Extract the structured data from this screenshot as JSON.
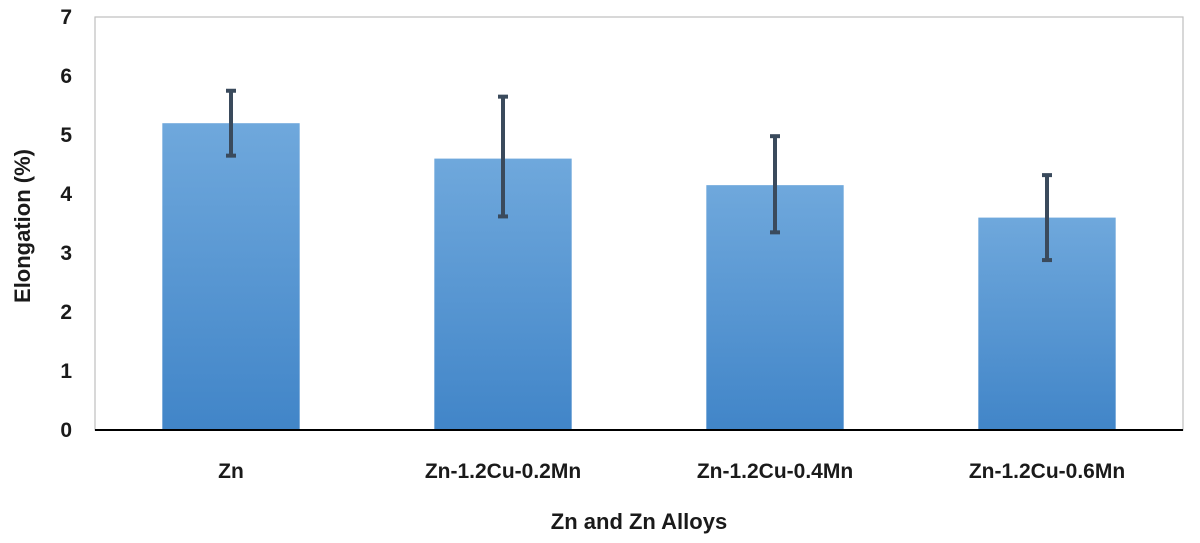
{
  "chart_data": {
    "type": "bar",
    "title": "",
    "xlabel": "Zn and Zn Alloys",
    "ylabel": "Elongation (%)",
    "ylim": [
      0,
      7
    ],
    "yticks": [
      0,
      1,
      2,
      3,
      4,
      5,
      6,
      7
    ],
    "grid": false,
    "categories": [
      "Zn",
      "Zn-1.2Cu-0.2Mn",
      "Zn-1.2Cu-0.4Mn",
      "Zn-1.2Cu-0.6Mn"
    ],
    "values": [
      5.2,
      4.6,
      4.15,
      3.6
    ],
    "error_low": [
      4.65,
      3.62,
      3.35,
      2.88
    ],
    "error_high": [
      5.75,
      5.65,
      4.98,
      4.32
    ],
    "bar_color_top": "#6fa8dc",
    "bar_color_bottom": "#4185c8",
    "error_bar_color": "#3a4a5c",
    "frame_color": "#bfbfbf"
  }
}
